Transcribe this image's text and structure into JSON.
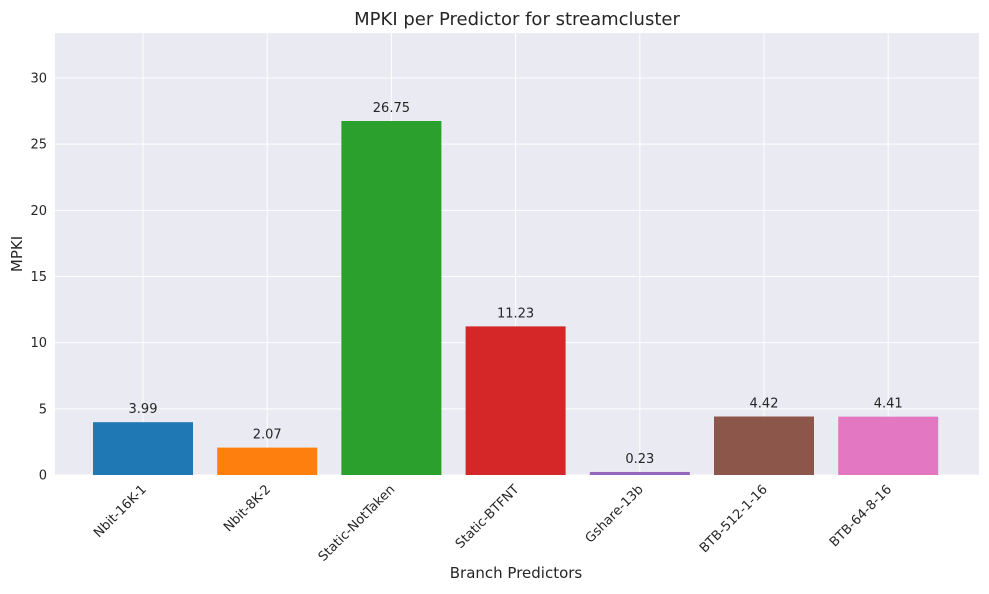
{
  "chart_data": {
    "type": "bar",
    "title": "MPKI per Predictor for streamcluster",
    "xlabel": "Branch Predictors",
    "ylabel": "MPKI",
    "categories": [
      "Nbit-16K-1",
      "Nbit-8K-2",
      "Static-NotTaken",
      "Static-BTFNT",
      "Gshare-13b",
      "BTB-512-1-16",
      "BTB-64-8-16"
    ],
    "values": [
      3.99,
      2.07,
      26.75,
      11.23,
      0.23,
      4.42,
      4.41
    ],
    "value_labels": [
      "3.99",
      "2.07",
      "26.75",
      "11.23",
      "0.23",
      "4.42",
      "4.41"
    ],
    "colors": [
      "#1f77b4",
      "#ff7f0e",
      "#2ca02c",
      "#d62728",
      "#9467bd",
      "#8c564b",
      "#e377c2"
    ],
    "ylim": [
      0,
      33.4
    ],
    "yticks": [
      0,
      5,
      10,
      15,
      20,
      25,
      30
    ],
    "grid": true,
    "legend": "none"
  }
}
